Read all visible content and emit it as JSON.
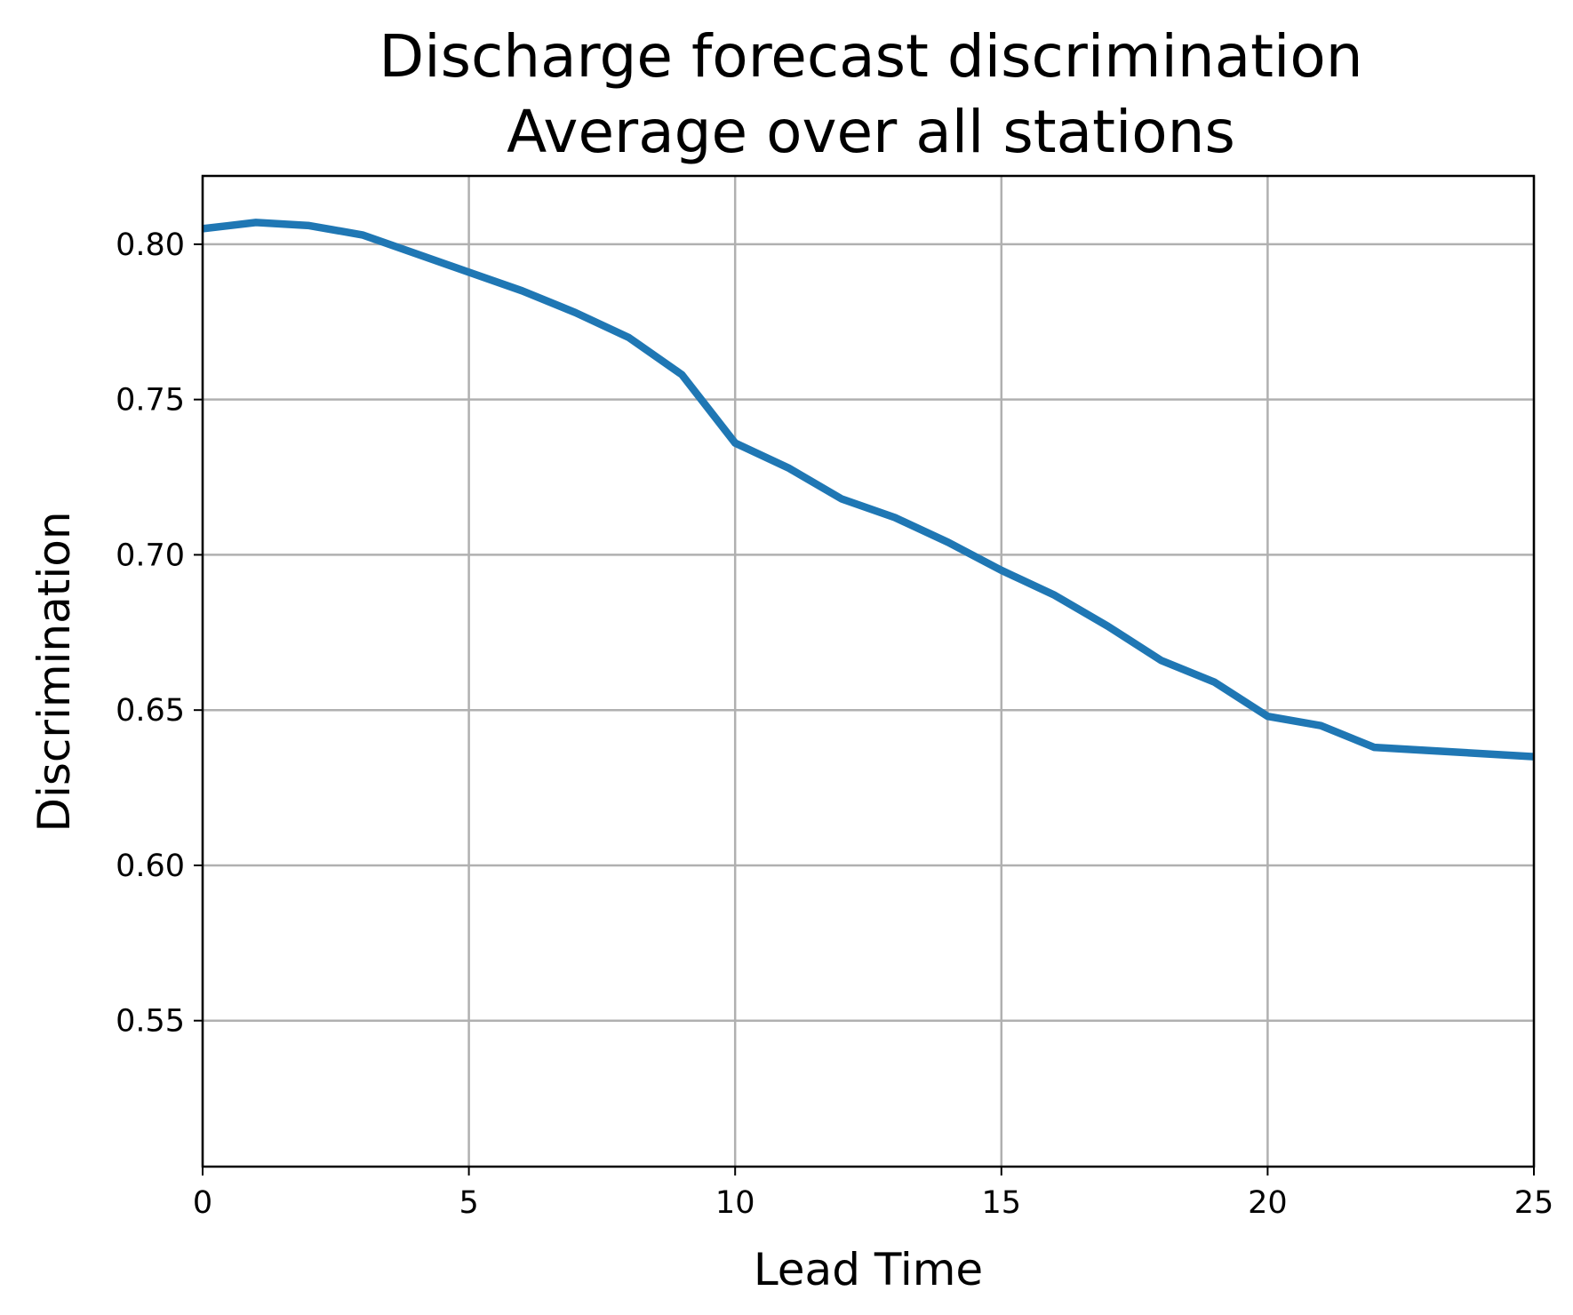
{
  "chart_data": {
    "type": "line",
    "title": [
      "Discharge forecast discrimination",
      "Average over all stations"
    ],
    "xlabel": "Lead Time",
    "ylabel": "Discrimination",
    "xlim": [
      0,
      25
    ],
    "ylim": [
      0.503,
      0.822
    ],
    "xticks": [
      0,
      5,
      10,
      15,
      20,
      25
    ],
    "xtick_labels": [
      "0",
      "5",
      "10",
      "15",
      "20",
      "25"
    ],
    "yticks": [
      0.55,
      0.6,
      0.65,
      0.7,
      0.75,
      0.8
    ],
    "ytick_labels": [
      "0.55",
      "0.60",
      "0.65",
      "0.70",
      "0.75",
      "0.80"
    ],
    "grid": true,
    "series": [
      {
        "color": "#1f77b4",
        "x": [
          0,
          1,
          2,
          3,
          4,
          5,
          6,
          7,
          8,
          9,
          10,
          11,
          12,
          13,
          14,
          15,
          16,
          17,
          18,
          19,
          20,
          21,
          22,
          23,
          24,
          25
        ],
        "values": [
          0.805,
          0.807,
          0.806,
          0.803,
          0.797,
          0.791,
          0.785,
          0.778,
          0.77,
          0.758,
          0.736,
          0.728,
          0.718,
          0.712,
          0.704,
          0.695,
          0.687,
          0.677,
          0.666,
          0.659,
          0.648,
          0.645,
          0.638,
          0.637,
          0.636,
          0.635
        ]
      }
    ]
  }
}
